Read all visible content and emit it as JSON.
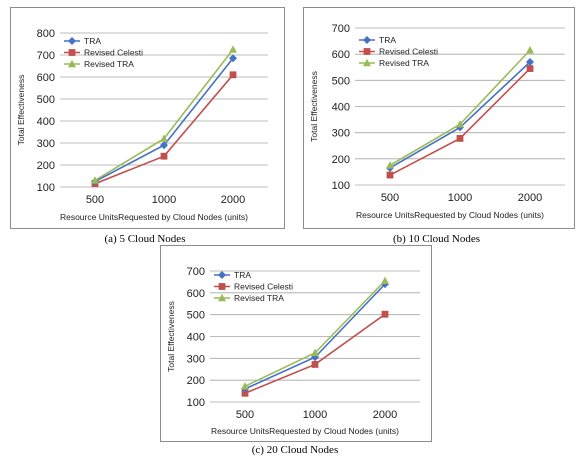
{
  "chart_data": [
    {
      "type": "line",
      "caption": "(a) 5 Cloud Nodes",
      "categories": [
        "500",
        "1000",
        "2000"
      ],
      "xlabel": "Resource UnitsRequested by Cloud Nodes (units)",
      "ylabel": "Total Effectiveness",
      "ylim": [
        100,
        800
      ],
      "yticks": [
        "100",
        "200",
        "300",
        "400",
        "500",
        "600",
        "700",
        "800"
      ],
      "legend": "top-left",
      "series": [
        {
          "name": "TRA",
          "values": [
            125,
            290,
            685
          ]
        },
        {
          "name": "Revised Celesti",
          "values": [
            115,
            240,
            610
          ]
        },
        {
          "name": "Revised TRA",
          "values": [
            130,
            320,
            725
          ]
        }
      ]
    },
    {
      "type": "line",
      "caption": "(b) 10 Cloud Nodes",
      "categories": [
        "500",
        "1000",
        "2000"
      ],
      "xlabel": "Resource UnitsRequested by Cloud Nodes (units)",
      "ylabel": "Total Effectiveness",
      "ylim": [
        100,
        700
      ],
      "yticks": [
        "100",
        "200",
        "300",
        "400",
        "500",
        "600",
        "700"
      ],
      "legend": "top-left",
      "series": [
        {
          "name": "TRA",
          "values": [
            165,
            320,
            570
          ]
        },
        {
          "name": "Revised Celesti",
          "values": [
            138,
            278,
            545
          ]
        },
        {
          "name": "Revised TRA",
          "values": [
            175,
            332,
            615
          ]
        }
      ]
    },
    {
      "type": "line",
      "caption": "(c) 20 Cloud Nodes",
      "categories": [
        "500",
        "1000",
        "2000"
      ],
      "xlabel": "Resource UnitsRequested by Cloud Nodes (units)",
      "ylabel": "Total Effectiveness",
      "ylim": [
        100,
        700
      ],
      "yticks": [
        "100",
        "200",
        "300",
        "400",
        "500",
        "600",
        "700"
      ],
      "legend": "top-left",
      "series": [
        {
          "name": "TRA",
          "values": [
            160,
            305,
            640
          ]
        },
        {
          "name": "Revised Celesti",
          "values": [
            140,
            272,
            502
          ]
        },
        {
          "name": "Revised TRA",
          "values": [
            172,
            325,
            655
          ]
        }
      ]
    }
  ],
  "colors": {
    "TRA": "#4472c4",
    "Revised Celesti": "#c0504d",
    "Revised TRA": "#9bbb59",
    "grid": "#a6a6a6",
    "frame": "#8c8c8c"
  }
}
